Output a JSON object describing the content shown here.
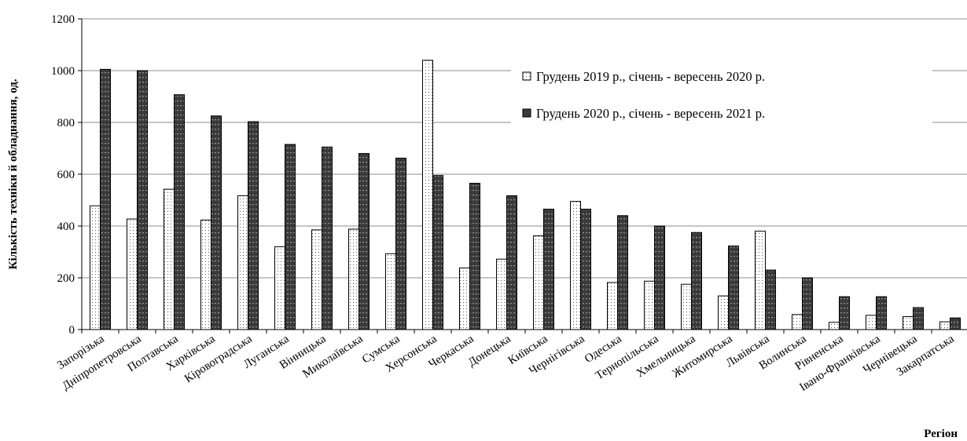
{
  "chart_data": {
    "type": "bar",
    "title": "",
    "xlabel": "Регіон",
    "ylabel": "Кількість техніки й обладнання, од.",
    "ylim": [
      0,
      1200
    ],
    "yticks": [
      0,
      200,
      400,
      600,
      800,
      1000,
      1200
    ],
    "grid": true,
    "legend_position": "top-right",
    "categories": [
      "Запорізька",
      "Дніпропетровська",
      "Полтавська",
      "Харківська",
      "Кіровоградська",
      "Луганська",
      "Вінницька",
      "Миколаївська",
      "Сумська",
      "Херсонська",
      "Черкаська",
      "Донецька",
      "Київська",
      "Чернігівська",
      "Одеська",
      "Тернопільська",
      "Хмельницька",
      "Житомирська",
      "Львівська",
      "Волинська",
      "Рівненська",
      "Івано-Франківська",
      "Чернівецька",
      "Закарпатська"
    ],
    "series": [
      {
        "name": "Грудень 2019 р., січень - вересень 2020 р.",
        "pattern": "dotted",
        "values": [
          478,
          427,
          542,
          423,
          517,
          320,
          385,
          388,
          293,
          1040,
          238,
          272,
          362,
          495,
          182,
          187,
          175,
          130,
          380,
          58,
          28,
          55,
          50,
          30
        ]
      },
      {
        "name": "Грудень 2020 р., січень - вересень 2021 р.",
        "pattern": "dark",
        "values": [
          1005,
          1000,
          907,
          825,
          803,
          715,
          705,
          680,
          662,
          595,
          565,
          517,
          465,
          465,
          440,
          400,
          375,
          323,
          230,
          200,
          127,
          127,
          85,
          45
        ]
      }
    ]
  }
}
